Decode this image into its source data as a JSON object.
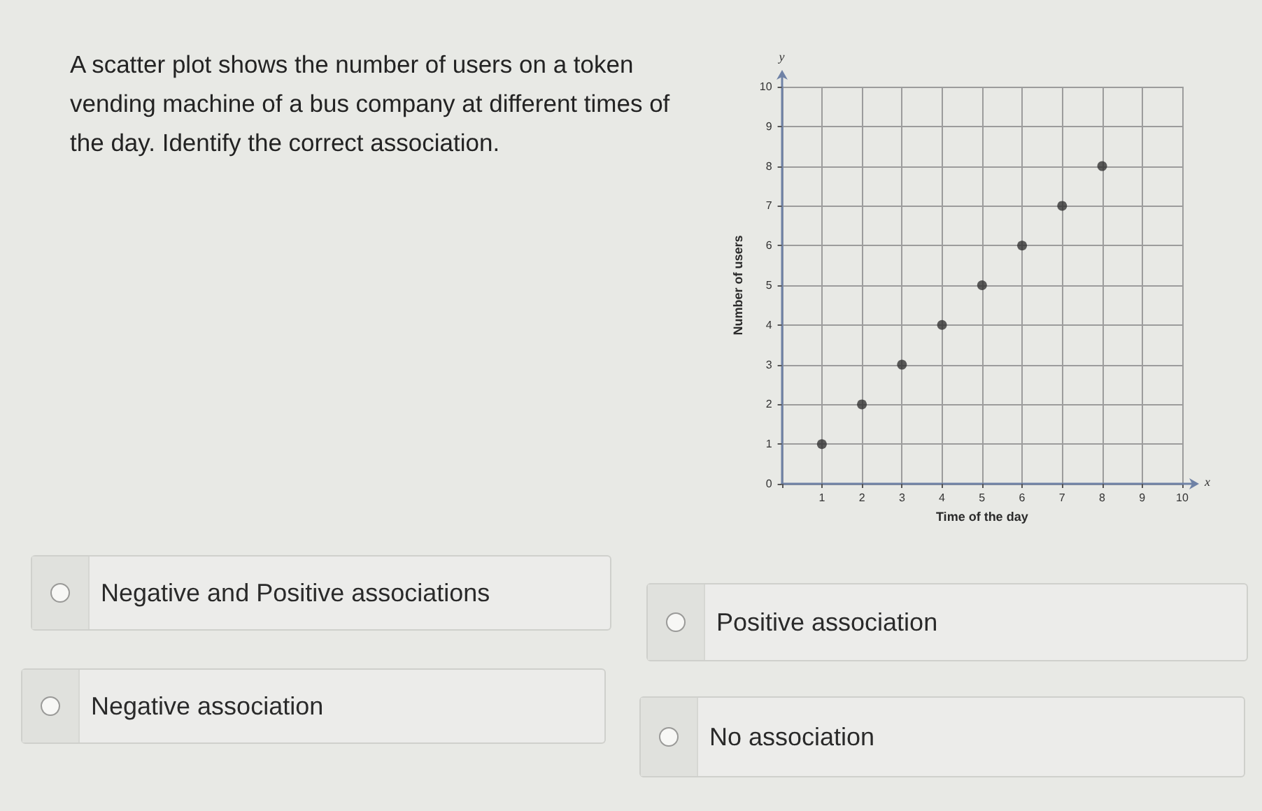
{
  "chart_data": [
    {
      "type": "scatter",
      "title": "A scatter plot shows the number of users on a token vending machine of a bus company at different times of the day. Identify the correct association.",
      "xlabel": "Time of the day",
      "ylabel": "Number of users",
      "annotations": [
        "y",
        "x"
      ],
      "x": [
        1,
        2,
        3,
        4,
        5,
        6,
        7,
        8
      ],
      "values": [
        1,
        2,
        3,
        4,
        5,
        6,
        7,
        8
      ],
      "color": "#333333",
      "marker": "circle",
      "xlim": [
        0,
        10
      ],
      "ylim": [
        0,
        10
      ],
      "xticks": [
        {
          "value": 0,
          "label": null
        },
        1,
        2,
        3,
        4,
        5,
        6,
        7,
        8,
        9,
        10
      ],
      "yticks": [
        0,
        1,
        2,
        3,
        4,
        5,
        6,
        7,
        8,
        9,
        10
      ],
      "grid": true
    },
    {
      "type": "other",
      "annotations": [
        "Negative and Positive associations",
        "Positive association",
        "Negative association",
        "No association"
      ]
    }
  ]
}
